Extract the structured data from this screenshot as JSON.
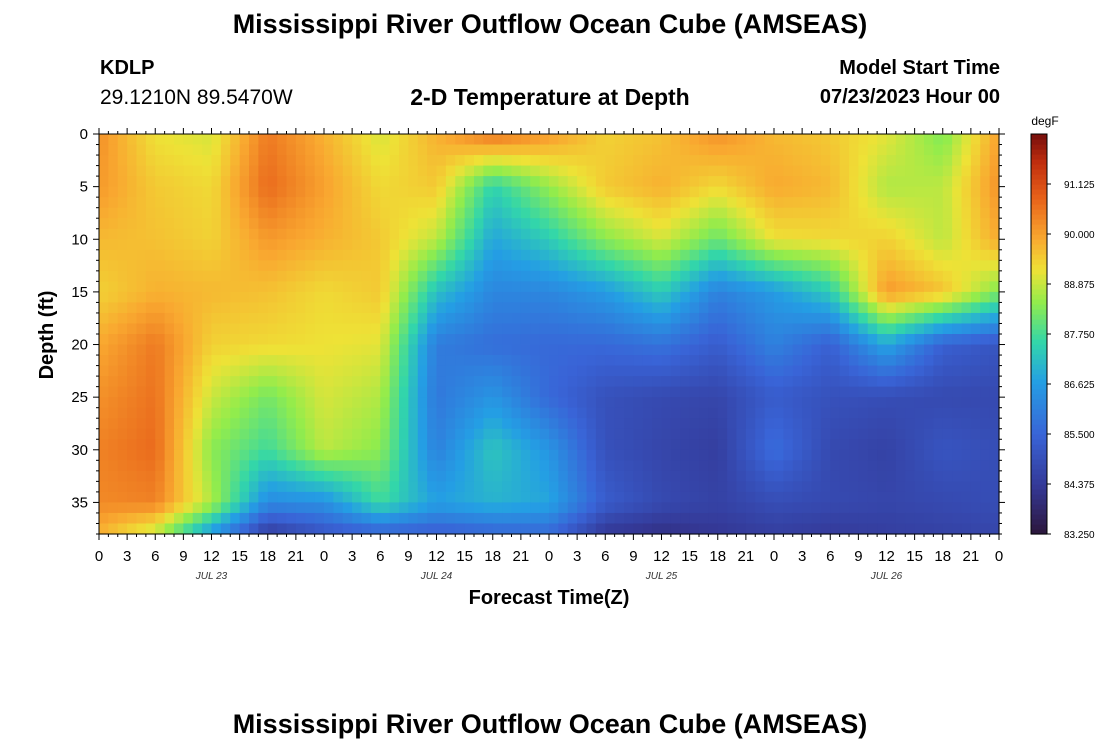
{
  "chart_data": {
    "type": "heatmap",
    "title": "Mississippi River Outflow Ocean Cube (AMSEAS)",
    "subtitle": "2-D Temperature at Depth",
    "station": "KDLP",
    "location": "29.1210N  89.5470W",
    "model_start_label": "Model Start Time",
    "model_start_value": "07/23/2023 Hour 00",
    "xlabel": "Forecast Time(Z)",
    "ylabel": "Depth (ft)",
    "x_ticks": [
      "0",
      "3",
      "6",
      "9",
      "12",
      "15",
      "18",
      "21",
      "0",
      "3",
      "6",
      "9",
      "12",
      "15",
      "18",
      "21",
      "0",
      "3",
      "6",
      "9",
      "12",
      "15",
      "18",
      "21",
      "0",
      "3",
      "6",
      "9",
      "12",
      "15",
      "18",
      "21",
      "0"
    ],
    "x_range_hours": [
      0,
      96
    ],
    "date_labels": [
      {
        "label": "JUL 23",
        "hour": 12
      },
      {
        "label": "JUL 24",
        "hour": 36
      },
      {
        "label": "JUL 25",
        "hour": 60
      },
      {
        "label": "JUL 26",
        "hour": 84
      }
    ],
    "y_ticks": [
      0,
      5,
      10,
      15,
      20,
      25,
      30,
      35
    ],
    "ylim": [
      0,
      38
    ],
    "y_reversed": true,
    "colorbar": {
      "units": "degF",
      "min": 83.25,
      "max": 92.25,
      "ticks": [
        "91.125",
        "90.000",
        "88.875",
        "87.750",
        "86.625",
        "85.500",
        "84.375",
        "83.250"
      ],
      "tick_values": [
        91.125,
        90.0,
        88.875,
        87.75,
        86.625,
        85.5,
        84.375,
        83.25
      ]
    },
    "temperature_grid": {
      "hours": [
        0,
        6,
        12,
        18,
        24,
        30,
        36,
        42,
        48,
        54,
        60,
        66,
        72,
        78,
        84,
        90,
        96
      ],
      "depths": [
        0,
        5,
        10,
        15,
        20,
        25,
        30,
        35,
        38
      ],
      "values": [
        [
          90.2,
          89.2,
          89.0,
          90.5,
          89.8,
          89.0,
          89.8,
          90.6,
          90.1,
          89.4,
          89.6,
          90.2,
          89.7,
          89.5,
          89.1,
          88.3,
          90.0
        ],
        [
          90.1,
          89.5,
          89.3,
          90.7,
          90.0,
          89.3,
          89.5,
          87.5,
          88.5,
          89.5,
          89.8,
          89.3,
          89.9,
          89.7,
          88.7,
          88.8,
          90.2
        ],
        [
          89.7,
          89.6,
          89.4,
          90.1,
          89.8,
          89.5,
          88.8,
          86.8,
          87.4,
          88.4,
          89.0,
          88.1,
          89.2,
          89.3,
          89.4,
          88.8,
          89.9
        ],
        [
          89.4,
          89.8,
          89.7,
          89.6,
          89.3,
          89.5,
          87.2,
          86.2,
          86.2,
          86.6,
          87.4,
          86.1,
          86.6,
          87.4,
          90.1,
          89.6,
          88.3
        ],
        [
          89.9,
          90.5,
          89.4,
          89.3,
          89.2,
          89.1,
          86.0,
          85.7,
          85.6,
          85.6,
          85.8,
          85.3,
          86.1,
          85.4,
          86.8,
          85.4,
          85.1
        ],
        [
          90.2,
          90.6,
          88.9,
          88.2,
          89.0,
          88.7,
          85.9,
          86.5,
          85.6,
          85.0,
          84.8,
          84.7,
          85.3,
          85.0,
          84.9,
          84.8,
          84.8
        ],
        [
          90.4,
          90.7,
          88.4,
          87.7,
          88.8,
          88.4,
          86.1,
          87.3,
          86.5,
          85.0,
          84.7,
          84.5,
          85.7,
          84.8,
          84.6,
          85.1,
          84.9
        ],
        [
          90.3,
          90.4,
          88.7,
          86.3,
          86.4,
          87.7,
          86.7,
          87.0,
          86.8,
          85.3,
          84.8,
          84.6,
          84.9,
          84.8,
          84.7,
          84.8,
          84.9
        ],
        [
          89.8,
          88.8,
          86.5,
          84.4,
          85.1,
          85.4,
          85.3,
          85.5,
          85.6,
          84.3,
          84.1,
          84.3,
          84.5,
          84.4,
          84.5,
          84.6,
          84.7
        ]
      ]
    }
  },
  "footer_title": "Mississippi River Outflow Ocean Cube (AMSEAS)"
}
